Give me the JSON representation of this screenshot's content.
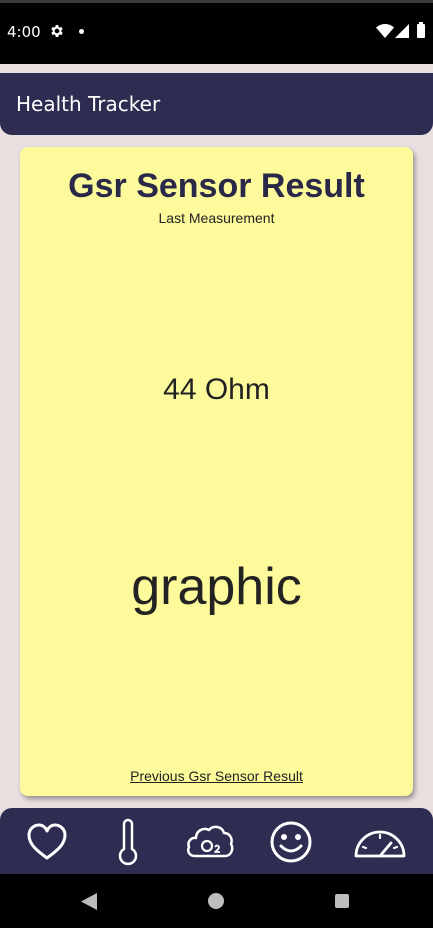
{
  "status_bar": {
    "time": "4:00",
    "icons": [
      "gear-icon",
      "notification-dot-icon",
      "wifi-icon",
      "signal-icon",
      "battery-icon"
    ]
  },
  "app_bar": {
    "title": "Health Tracker"
  },
  "card": {
    "title": "Gsr Sensor Result",
    "subtitle": "Last Measurement",
    "value": "44 Ohm",
    "graphic_placeholder": "graphic",
    "previous_link": "Previous Gsr Sensor Result",
    "background_color": "#fdfa9b"
  },
  "bottom_nav": {
    "items": [
      {
        "icon": "heart-icon"
      },
      {
        "icon": "thermometer-icon"
      },
      {
        "icon": "oxygen-cloud-icon"
      },
      {
        "icon": "smiley-icon"
      },
      {
        "icon": "speedometer-icon"
      }
    ],
    "background_color": "#2e2c51"
  },
  "system_nav": {
    "buttons": [
      "back-icon",
      "home-icon",
      "recents-icon"
    ]
  }
}
